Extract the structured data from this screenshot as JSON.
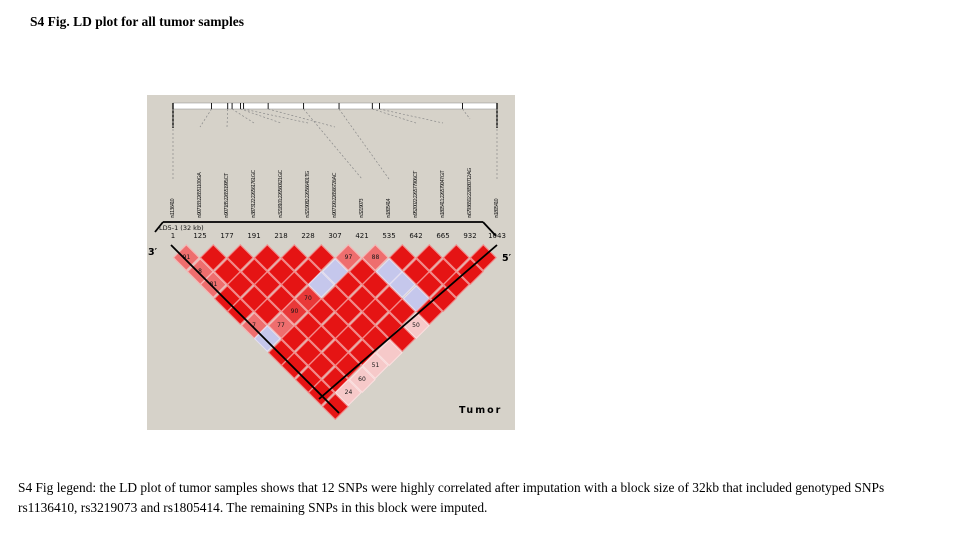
{
  "title": "S4 Fig. LD plot for all tumor samples",
  "legend": "S4 Fig legend: the LD plot of tumor samples shows that 12 SNPs were highly correlated after imputation with a block size of 32kb that included genotyped SNPs rs1136410, rs3219073 and rs1805414. The remaining SNPs in this block were imputed.",
  "chart_data": {
    "type": "heatmap",
    "subtype": "ld-triangle-plot",
    "n_snps": 13,
    "snps": [
      "rs1136410",
      "rs907183:226551100:G:A",
      "rs907185:226551995:C:T",
      "rs3873122:226561761:G:C",
      "rs3218101:226560621:G:C",
      "rs3219082:226566401:T:G",
      "rs907190:226566726:A:C",
      "rs3219073",
      "rs1805414",
      "rs9520022:226577906:C:T",
      "rs1805411:226579047:G:T",
      "rs67936502:226580712:A:G",
      "rs1805410"
    ],
    "positions": [
      "1",
      "125",
      "177",
      "191",
      "218",
      "228",
      "307",
      "421",
      "535",
      "642",
      "665",
      "932",
      "1043"
    ],
    "positions_numeric": [
      1,
      125,
      177,
      191,
      218,
      228,
      307,
      421,
      535,
      642,
      665,
      932,
      1043
    ],
    "block_label": "LD5-1 (32 kb)",
    "default_cell": {
      "color_key": "red",
      "label": ""
    },
    "cell_overrides": [
      {
        "i": 1,
        "j": 2,
        "color_key": "salmon",
        "label": "91"
      },
      {
        "i": 1,
        "j": 3,
        "color_key": "salmon",
        "label": "8"
      },
      {
        "i": 1,
        "j": 4,
        "color_key": "salmon",
        "label": "81"
      },
      {
        "i": 1,
        "j": 7,
        "color_key": "salmon",
        "label": "7"
      },
      {
        "i": 1,
        "j": 8,
        "color_key": "blue",
        "label": ""
      },
      {
        "i": 2,
        "j": 8,
        "color_key": "salmon",
        "label": "77"
      },
      {
        "i": 3,
        "j": 8,
        "color_key": "medred",
        "label": "90"
      },
      {
        "i": 4,
        "j": 8,
        "color_key": "medred",
        "label": "70"
      },
      {
        "i": 5,
        "j": 8,
        "color_key": "blue",
        "label": ""
      },
      {
        "i": 6,
        "j": 8,
        "color_key": "blue",
        "label": ""
      },
      {
        "i": 7,
        "j": 8,
        "color_key": "salmon",
        "label": "97"
      },
      {
        "i": 8,
        "j": 9,
        "color_key": "salmon",
        "label": "88"
      },
      {
        "i": 8,
        "j": 10,
        "color_key": "blue",
        "label": ""
      },
      {
        "i": 8,
        "j": 11,
        "color_key": "blue",
        "label": ""
      },
      {
        "i": 8,
        "j": 12,
        "color_key": "blue",
        "label": ""
      },
      {
        "i": 2,
        "j": 13,
        "color_key": "pink",
        "label": "24"
      },
      {
        "i": 3,
        "j": 13,
        "color_key": "pink",
        "label": "60"
      },
      {
        "i": 4,
        "j": 13,
        "color_key": "pink",
        "label": "51"
      },
      {
        "i": 5,
        "j": 13,
        "color_key": "pink",
        "label": ""
      },
      {
        "i": 7,
        "j": 13,
        "color_key": "pink",
        "label": "50"
      }
    ],
    "colors": {
      "red": "#e51414",
      "medred": "#e93838",
      "salmon": "#ee6e6e",
      "pink": "#f6c9c9",
      "blue": "#c5c7ec",
      "plot_bg": "#d6d2c9",
      "ruler": "#ffffff"
    },
    "annotations": {
      "three_prime": "3′",
      "five_prime": "5′",
      "sample_label": "Tumor"
    }
  }
}
